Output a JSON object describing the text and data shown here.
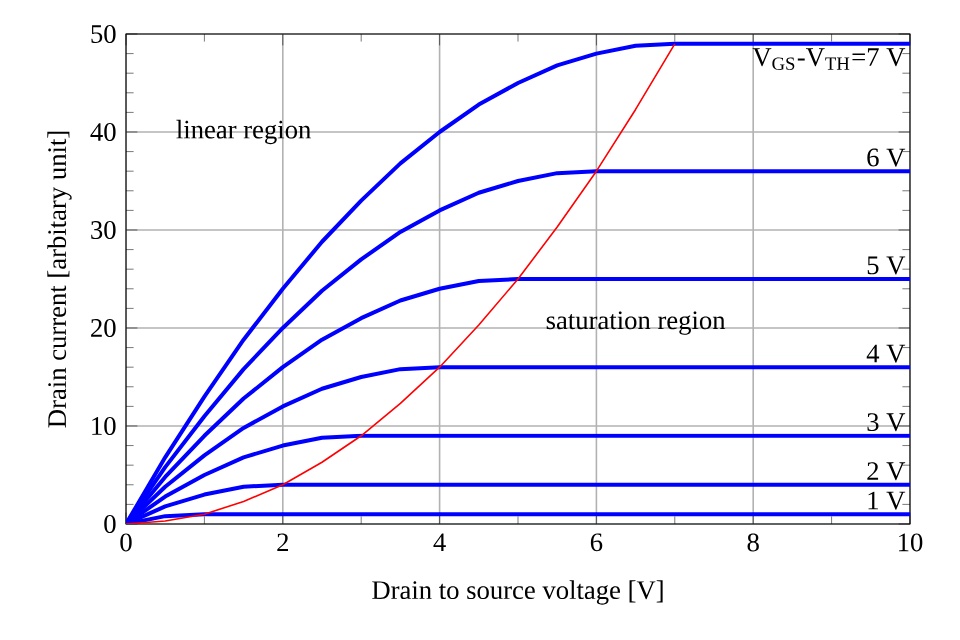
{
  "chart_data": {
    "type": "line",
    "xlabel": "Drain to source voltage [V]",
    "ylabel": "Drain current [arbitary unit]",
    "x": [
      0,
      0.5,
      1,
      1.5,
      2,
      2.5,
      3,
      3.5,
      4,
      4.5,
      5,
      5.5,
      6,
      6.5,
      7,
      7.5,
      8,
      8.5,
      9,
      9.5,
      10
    ],
    "xlim": [
      0,
      10
    ],
    "ylim": [
      0,
      50
    ],
    "xticks": [
      0,
      2,
      4,
      6,
      8,
      10
    ],
    "yticks": [
      0,
      10,
      20,
      30,
      40,
      50
    ],
    "grid": true,
    "series": [
      {
        "name": "1 V",
        "color": "#0000ff",
        "values": [
          0,
          0.8,
          1,
          1,
          1,
          1,
          1,
          1,
          1,
          1,
          1,
          1,
          1,
          1,
          1,
          1,
          1,
          1,
          1,
          1,
          1
        ]
      },
      {
        "name": "2 V",
        "color": "#0000ff",
        "values": [
          0,
          1.8,
          3,
          3.8,
          4,
          4,
          4,
          4,
          4,
          4,
          4,
          4,
          4,
          4,
          4,
          4,
          4,
          4,
          4,
          4,
          4
        ]
      },
      {
        "name": "3 V",
        "color": "#0000ff",
        "values": [
          0,
          2.8,
          5,
          6.8,
          8,
          8.8,
          9,
          9,
          9,
          9,
          9,
          9,
          9,
          9,
          9,
          9,
          9,
          9,
          9,
          9,
          9
        ]
      },
      {
        "name": "4 V",
        "color": "#0000ff",
        "values": [
          0,
          3.8,
          7,
          9.8,
          12,
          13.8,
          15,
          15.8,
          16,
          16,
          16,
          16,
          16,
          16,
          16,
          16,
          16,
          16,
          16,
          16,
          16
        ]
      },
      {
        "name": "5 V",
        "color": "#0000ff",
        "values": [
          0,
          4.8,
          9,
          12.8,
          16,
          18.8,
          21,
          22.8,
          24,
          24.8,
          25,
          25,
          25,
          25,
          25,
          25,
          25,
          25,
          25,
          25,
          25
        ]
      },
      {
        "name": "6 V",
        "color": "#0000ff",
        "values": [
          0,
          5.8,
          11,
          15.8,
          20,
          23.8,
          27,
          29.8,
          32,
          33.8,
          35,
          35.8,
          36,
          36,
          36,
          36,
          36,
          36,
          36,
          36,
          36
        ]
      },
      {
        "name": "V$_{GS}$-V$_{TH}$=7 V",
        "color": "#0000ff",
        "values": [
          0,
          6.8,
          13,
          18.8,
          24,
          28.8,
          33,
          36.8,
          40,
          42.8,
          45,
          46.8,
          48,
          48.8,
          49,
          49,
          49,
          49,
          49,
          49,
          49
        ]
      },
      {
        "color": "#ff0000",
        "x": [
          0,
          0.5,
          1,
          1.5,
          2,
          2.5,
          3,
          3.5,
          4,
          4.5,
          5,
          5.5,
          6,
          6.5,
          7
        ],
        "values": [
          0,
          0.3,
          1,
          2.3,
          4,
          6.3,
          9,
          12.3,
          16,
          20.3,
          25,
          30.3,
          36,
          42.3,
          49
        ]
      }
    ],
    "annotations": [
      "linear region",
      "saturation region"
    ]
  }
}
